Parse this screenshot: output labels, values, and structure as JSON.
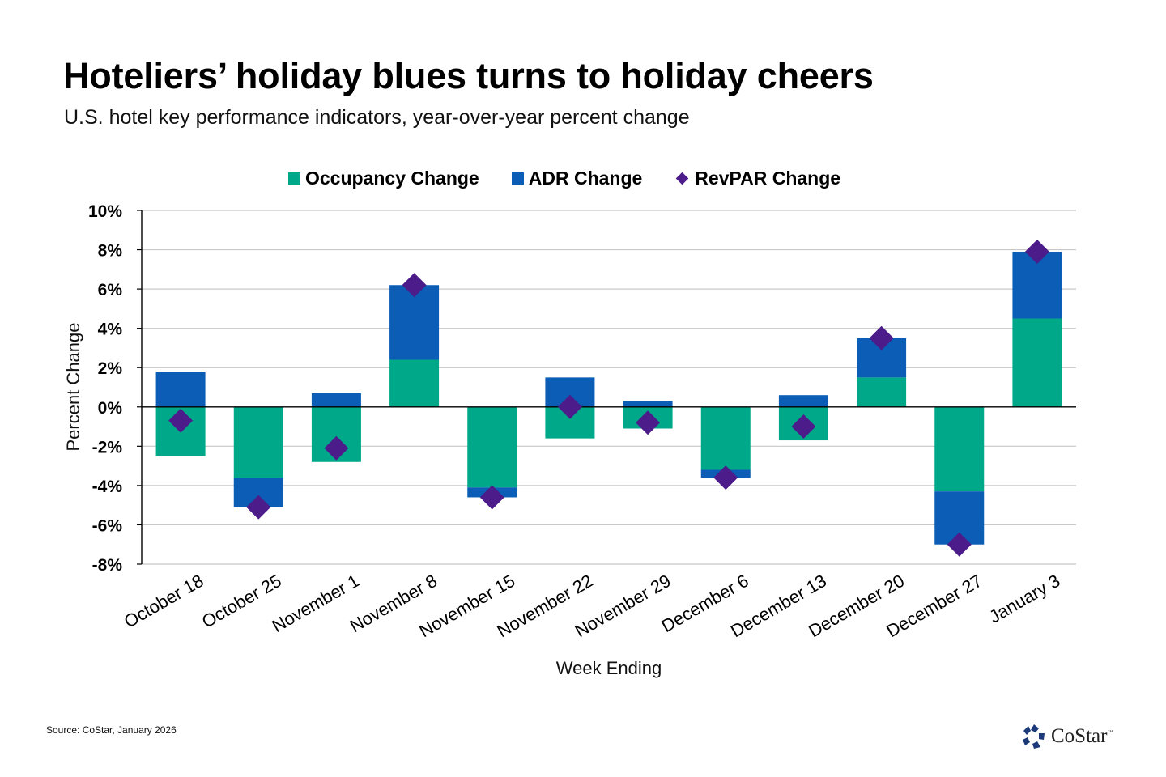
{
  "header": {
    "title": "Hoteliers’ holiday blues turns to holiday cheers",
    "subtitle": "U.S. hotel key performance indicators, year-over-year percent change"
  },
  "colors": {
    "occupancy": "#00A88A",
    "adr": "#0B5DB5",
    "revpar": "#4B1C8A",
    "gridline": "#C8C8C8",
    "axis": "#000000"
  },
  "chart_data": {
    "type": "bar",
    "subtype": "stacked bar with diamond markers",
    "title": "Hoteliers’ holiday blues turns to holiday cheers",
    "subtitle": "U.S. hotel key performance indicators, year-over-year percent change",
    "xlabel": "Week Ending",
    "ylabel": "Percent Change",
    "ylim": [
      -8,
      10
    ],
    "yticks": [
      -8,
      -6,
      -4,
      -2,
      0,
      2,
      4,
      6,
      8,
      10
    ],
    "ytick_labels": [
      "-8%",
      "-6%",
      "-4%",
      "-2%",
      "0%",
      "2%",
      "4%",
      "6%",
      "8%",
      "10%"
    ],
    "grid": true,
    "legend_position": "top-center",
    "categories": [
      "October 18",
      "October 25",
      "November 1",
      "November 8",
      "November 15",
      "November 22",
      "November 29",
      "December 6",
      "December 13",
      "December 20",
      "December 27",
      "January 3"
    ],
    "series": [
      {
        "name": "Occupancy Change",
        "type": "bar",
        "values": [
          -2.5,
          -3.6,
          -2.8,
          2.4,
          -4.1,
          -1.6,
          -1.1,
          -3.2,
          -1.7,
          1.5,
          -4.3,
          4.5
        ]
      },
      {
        "name": "ADR Change",
        "type": "bar",
        "values": [
          1.8,
          -1.5,
          0.7,
          3.8,
          -0.5,
          1.5,
          0.3,
          -0.4,
          0.6,
          2.0,
          -2.7,
          3.4
        ]
      },
      {
        "name": "RevPAR Change",
        "type": "marker-diamond",
        "values": [
          -0.7,
          -5.1,
          -2.1,
          6.2,
          -4.6,
          0.0,
          -0.8,
          -3.6,
          -1.0,
          3.5,
          -7.0,
          7.9
        ]
      }
    ]
  },
  "legend": {
    "items": [
      {
        "label": "Occupancy Change",
        "marker": "square"
      },
      {
        "label": "ADR Change",
        "marker": "square"
      },
      {
        "label": "RevPAR Change",
        "marker": "diamond"
      }
    ]
  },
  "footer": {
    "source": "Source: CoStar, January 2026",
    "logo_text": "CoStar",
    "logo_tm": "™"
  }
}
